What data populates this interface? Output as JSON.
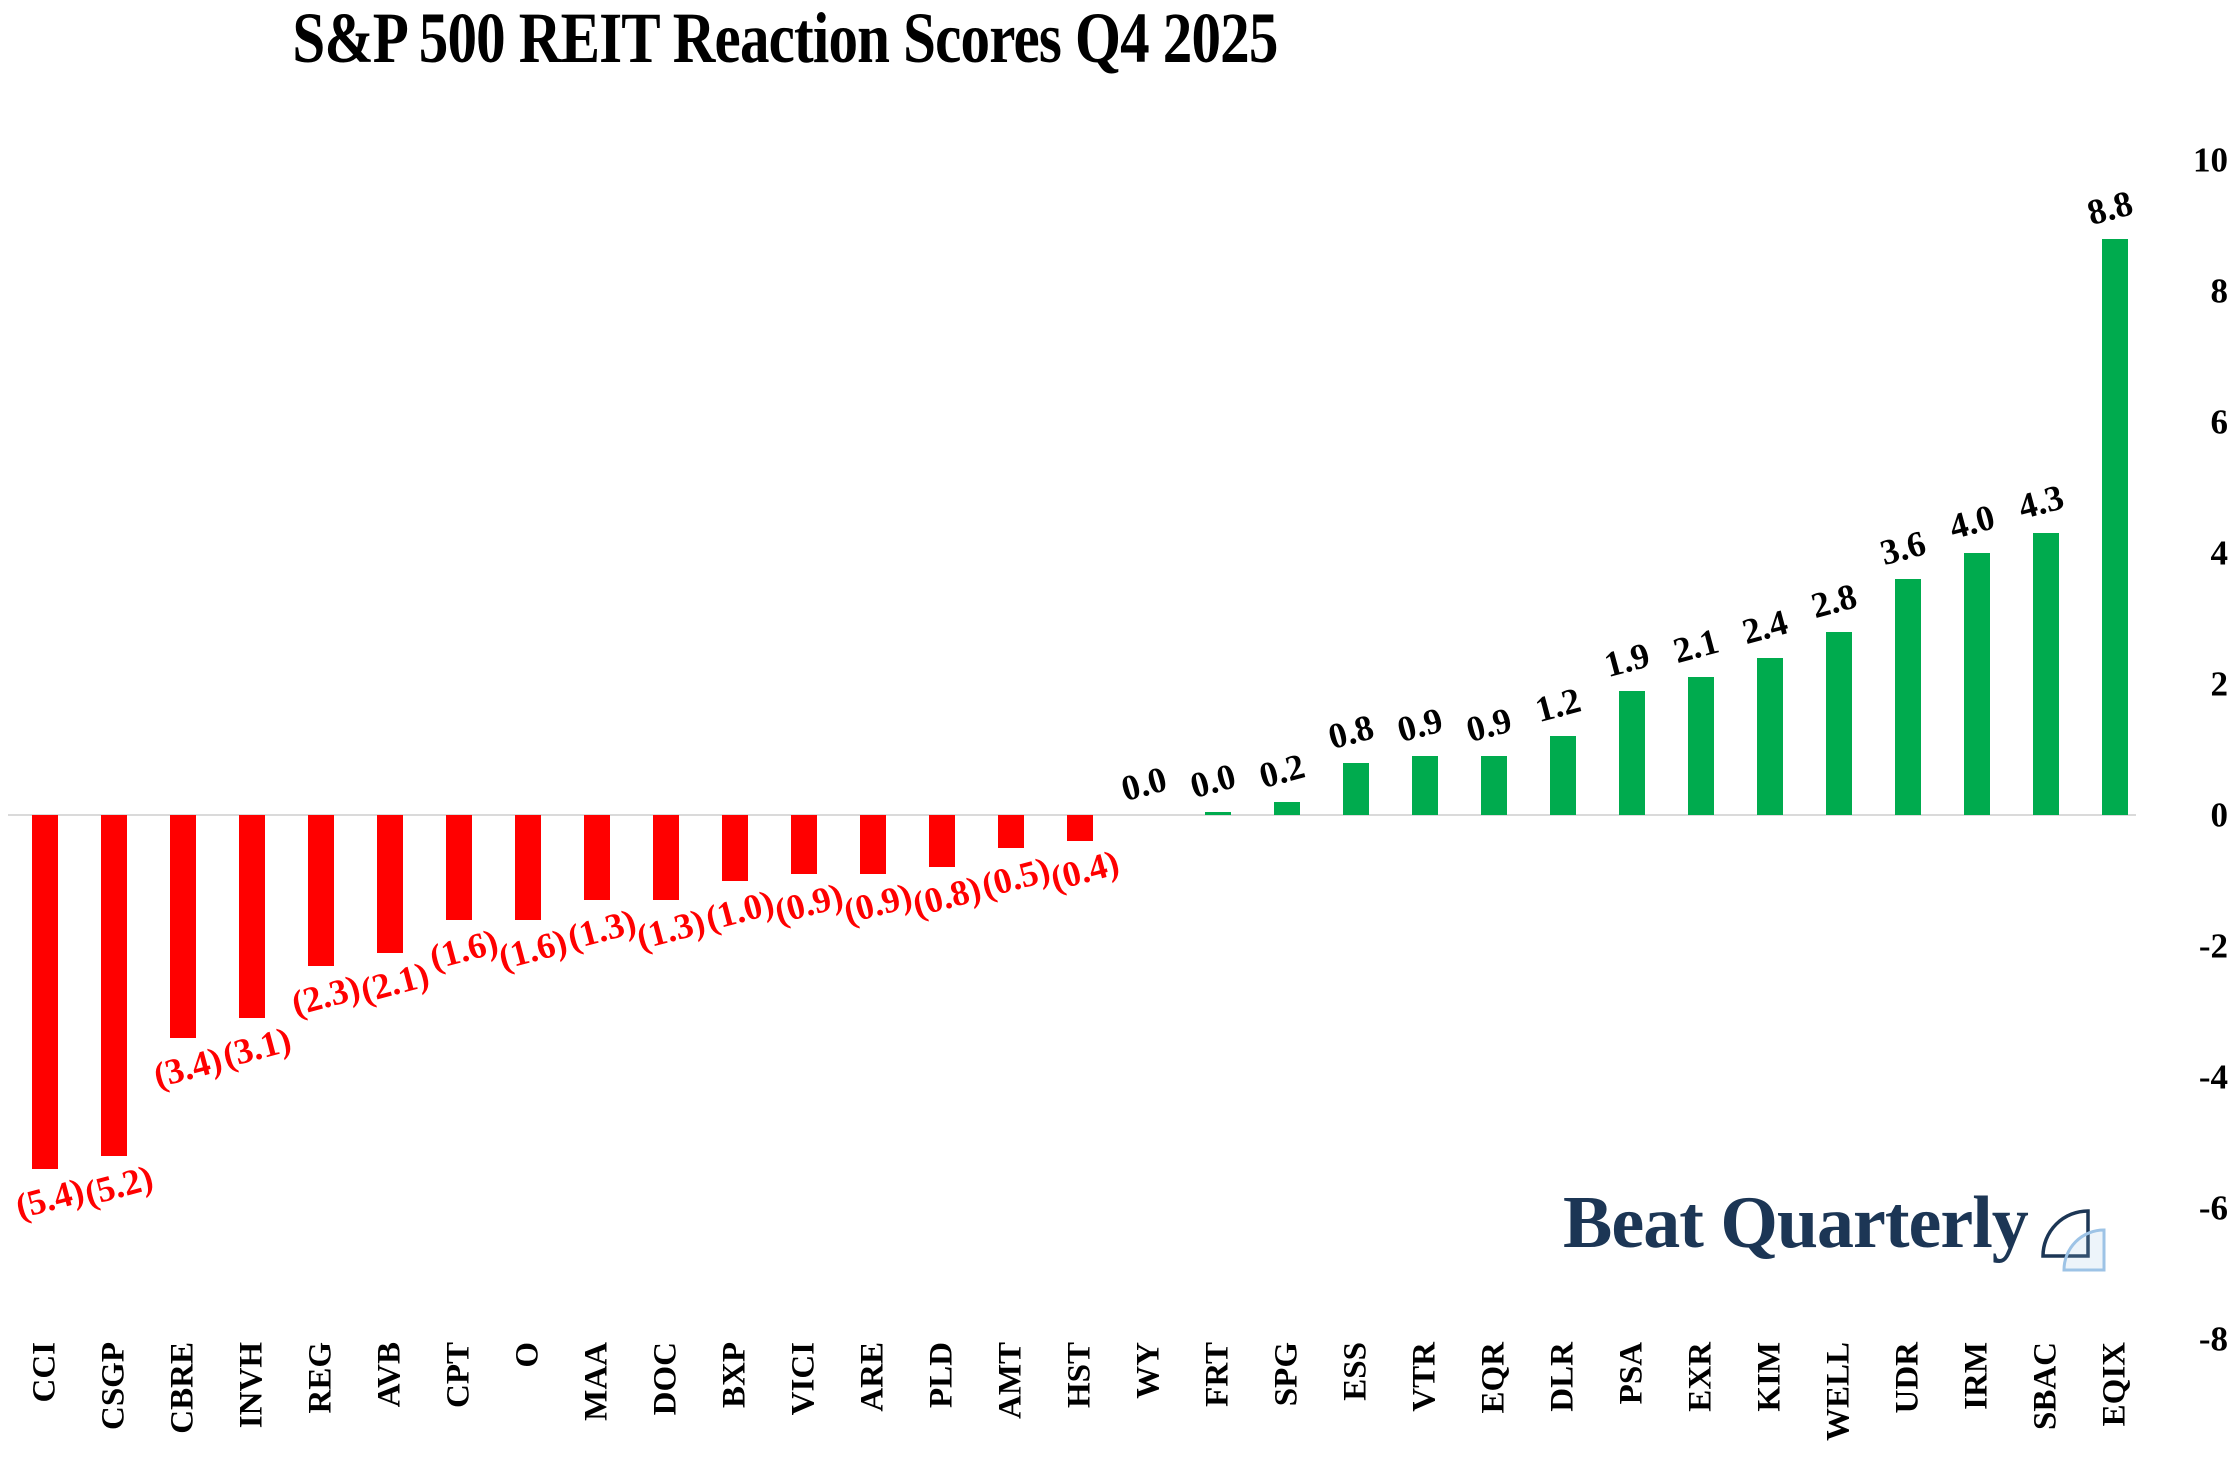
{
  "title": "S&P 500 REIT Reaction Scores Q4 2025",
  "logo": {
    "text": "Beat Quarterly",
    "color": "#1C3655",
    "icon": "quarter-circle-icon",
    "icon_navy": "#1C3655",
    "icon_light_blue": "#9DC3E6"
  },
  "chart_data": {
    "type": "bar",
    "title": "S&P 500 REIT Reaction Scores Q4 2025",
    "categories": [
      "CCI",
      "CSGP",
      "CBRE",
      "INVH",
      "REG",
      "AVB",
      "CPT",
      "O",
      "MAA",
      "DOC",
      "BXP",
      "VICI",
      "ARE",
      "PLD",
      "AMT",
      "HST",
      "WY",
      "FRT",
      "SPG",
      "ESS",
      "VTR",
      "EQR",
      "DLR",
      "PSA",
      "EXR",
      "KIM",
      "WELL",
      "UDR",
      "IRM",
      "SBAC",
      "EQIX"
    ],
    "values": [
      -5.4,
      -5.2,
      -3.4,
      -3.1,
      -2.3,
      -2.1,
      -1.6,
      -1.6,
      -1.3,
      -1.3,
      -1.0,
      -0.9,
      -0.9,
      -0.8,
      -0.5,
      -0.4,
      0.0,
      0.05,
      0.2,
      0.8,
      0.9,
      0.9,
      1.2,
      1.9,
      2.1,
      2.4,
      2.8,
      3.6,
      4.0,
      4.3,
      8.8
    ],
    "value_labels": [
      "(5.4)",
      "(5.2)",
      "(3.4)",
      "(3.1)",
      "(2.3)",
      "(2.1)",
      "(1.6)",
      "(1.6)",
      "(1.3)",
      "(1.3)",
      "(1.0)",
      "(0.9)",
      "(0.9)",
      "(0.8)",
      "(0.5)",
      "(0.4)",
      "0.0",
      "0.0",
      "0.2",
      "0.8",
      "0.9",
      "0.9",
      "1.2",
      "1.9",
      "2.1",
      "2.4",
      "2.8",
      "3.6",
      "4.0",
      "4.3",
      "8.8"
    ],
    "yticks": [
      {
        "label": "10",
        "value": 10
      },
      {
        "label": "8",
        "value": 8
      },
      {
        "label": "6",
        "value": 6
      },
      {
        "label": "4",
        "value": 4
      },
      {
        "label": "2",
        "value": 2
      },
      {
        "label": "0",
        "value": 0
      },
      {
        "label": "-2",
        "value": -2
      },
      {
        "label": "-4",
        "value": -4
      },
      {
        "label": "-6",
        "value": -6
      },
      {
        "label": "-8",
        "value": -8
      }
    ],
    "ylim": [
      -8,
      10
    ],
    "grid": false,
    "legend": "none",
    "y_axis_position": "right",
    "negative_color": "#FF0000",
    "positive_color": "#00AB4E",
    "negative_label_color": "#FF0000",
    "positive_label_color": "#000000",
    "zero_line_color": "#DADADA",
    "x_tick_rotation_deg": 90,
    "value_label_rotation_deg": 15
  }
}
